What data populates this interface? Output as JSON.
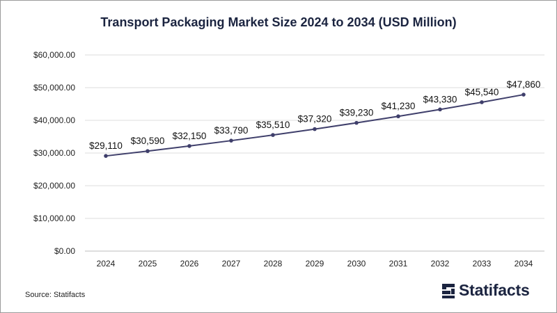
{
  "chart_data": {
    "type": "line",
    "title": "Transport Packaging Market Size 2024 to 2034 (USD Million)",
    "xlabel": "",
    "ylabel": "",
    "categories": [
      "2024",
      "2025",
      "2026",
      "2027",
      "2028",
      "2029",
      "2030",
      "2031",
      "2032",
      "2033",
      "2034"
    ],
    "series": [
      {
        "values": [
          29110,
          30590,
          32150,
          33790,
          35510,
          37320,
          39230,
          41230,
          43330,
          45540,
          47860
        ],
        "data_labels": [
          "$29,110",
          "$30,590",
          "$32,150",
          "$33,790",
          "$35,510",
          "$37,320",
          "$39,230",
          "$41,230",
          "$43,330",
          "$45,540",
          "$47,860"
        ],
        "color": "#3f3f6b"
      }
    ],
    "ylim": [
      0,
      60000
    ],
    "y_ticks": [
      0,
      10000,
      20000,
      30000,
      40000,
      50000,
      60000
    ],
    "y_tick_labels": [
      "$0.00",
      "$10,000.00",
      "$20,000.00",
      "$30,000.00",
      "$40,000.00",
      "$50,000.00",
      "$60,000.00"
    ],
    "grid": true,
    "legend": "none"
  },
  "footer": {
    "source": "Source: Statifacts",
    "brand": "Statifacts"
  },
  "colors": {
    "title": "#1b2440",
    "gridline": "#dedede",
    "axis": "#bdbdbd",
    "line": "#3f3f6b",
    "brand": "#1b2440"
  },
  "icons": {
    "brand_logo": "statifacts-logo-icon"
  }
}
